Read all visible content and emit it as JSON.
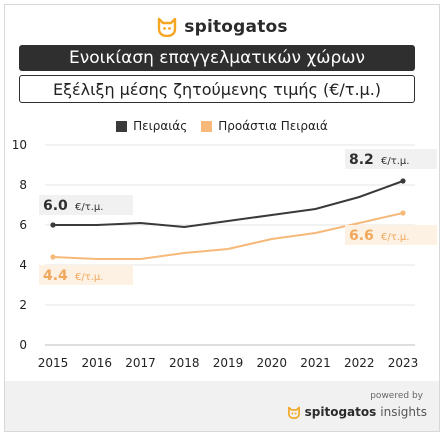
{
  "brand": {
    "name": "spitogatos",
    "icon": "cat-face-icon"
  },
  "header": {
    "title": "Ενοικίαση επαγγελματικών χώρων",
    "subtitle": "Εξέλιξη μέσης ζητούμενης τιμής (€/τ.μ.)"
  },
  "footer": {
    "powered_by": "powered by",
    "brand_name": "spitogatos",
    "brand_suffix": "insights"
  },
  "colors": {
    "piraeus": "#3a3a3a",
    "suburbs": "#f6b97a",
    "brand_accent": "#f5a623"
  },
  "chart_data": {
    "type": "line",
    "title": "Εξέλιξη μέσης ζητούμενης τιμής (€/τ.μ.)",
    "x": [
      "2015",
      "2016",
      "2017",
      "2018",
      "2019",
      "2020",
      "2021",
      "2022",
      "2023"
    ],
    "series": [
      {
        "name": "Πειραιάς",
        "values": [
          6.0,
          6.0,
          6.1,
          5.9,
          6.2,
          6.5,
          6.8,
          7.4,
          8.2
        ]
      },
      {
        "name": "Προάστια Πειραιά",
        "values": [
          4.4,
          4.3,
          4.3,
          4.6,
          4.8,
          5.3,
          5.6,
          6.1,
          6.6
        ]
      }
    ],
    "yticks": [
      "0",
      "2",
      "4",
      "6",
      "8",
      "10"
    ],
    "ylim": [
      0,
      10
    ],
    "grid": "horizontal",
    "legend": "top-center",
    "annotations": [
      {
        "series": 0,
        "index": 0,
        "value": "6.0",
        "unit": "€/τ.μ."
      },
      {
        "series": 0,
        "index": 8,
        "value": "8.2",
        "unit": "€/τ.μ."
      },
      {
        "series": 1,
        "index": 0,
        "value": "4.4",
        "unit": "€/τ.μ."
      },
      {
        "series": 1,
        "index": 8,
        "value": "6.6",
        "unit": "€/τ.μ."
      }
    ]
  }
}
